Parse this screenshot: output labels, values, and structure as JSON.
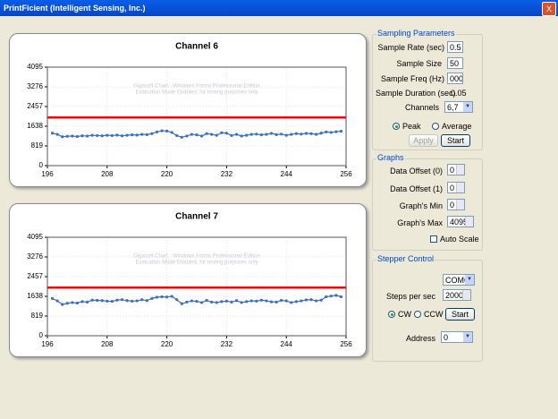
{
  "window": {
    "title": "PrintFicient (Intelligent Sensing, Inc.)",
    "close": "X"
  },
  "charts": [
    {
      "type": "line",
      "title": "Channel 6",
      "watermark": [
        "Gigasoft Chart - Windows Forms Professional Edition",
        "Evaluation Mode Enabled, for testing purposes only"
      ],
      "x": [
        197,
        198,
        199,
        200,
        201,
        202,
        203,
        204,
        205,
        206,
        207,
        208,
        209,
        210,
        211,
        212,
        213,
        214,
        215,
        216,
        217,
        218,
        219,
        220,
        221,
        222,
        223,
        224,
        225,
        226,
        227,
        228,
        229,
        230,
        231,
        232,
        233,
        234,
        235,
        236,
        237,
        238,
        239,
        240,
        241,
        242,
        243,
        244,
        245,
        246,
        247,
        248,
        249,
        250,
        251,
        252,
        253,
        254,
        255
      ],
      "series": [
        {
          "color": "#3a6fc4",
          "values": [
            1350,
            1300,
            1200,
            1220,
            1230,
            1210,
            1240,
            1230,
            1260,
            1250,
            1240,
            1260,
            1250,
            1270,
            1240,
            1260,
            1280,
            1270,
            1300,
            1290,
            1330,
            1400,
            1450,
            1440,
            1380,
            1250,
            1180,
            1230,
            1300,
            1280,
            1230,
            1330,
            1300,
            1260,
            1370,
            1350,
            1250,
            1300,
            1230,
            1260,
            1300,
            1310,
            1280,
            1300,
            1340,
            1290,
            1310,
            1260,
            1300,
            1330,
            1310,
            1340,
            1330,
            1300,
            1350,
            1400,
            1380,
            1410,
            1430
          ]
        }
      ],
      "threshold": {
        "value": 2000,
        "color": "#ff0000"
      },
      "xlim": [
        196,
        256
      ],
      "xticks": [
        196,
        208,
        220,
        232,
        244,
        256
      ],
      "ylim": [
        0,
        4095
      ],
      "yticks": [
        0,
        819,
        1638,
        2457,
        3276,
        4095
      ],
      "grid": true
    },
    {
      "type": "line",
      "title": "Channel 7",
      "watermark": [
        "Gigasoft Chart - Windows Forms Professional Edition",
        "Evaluation Mode Enabled, for testing purposes only"
      ],
      "x": [
        197,
        198,
        199,
        200,
        201,
        202,
        203,
        204,
        205,
        206,
        207,
        208,
        209,
        210,
        211,
        212,
        213,
        214,
        215,
        216,
        217,
        218,
        219,
        220,
        221,
        222,
        223,
        224,
        225,
        226,
        227,
        228,
        229,
        230,
        231,
        232,
        233,
        234,
        235,
        236,
        237,
        238,
        239,
        240,
        241,
        242,
        243,
        244,
        245,
        246,
        247,
        248,
        249,
        250,
        251,
        252,
        253,
        254,
        255
      ],
      "series": [
        {
          "color": "#3a6fc4",
          "values": [
            1550,
            1450,
            1300,
            1350,
            1380,
            1360,
            1420,
            1400,
            1480,
            1470,
            1460,
            1440,
            1430,
            1480,
            1500,
            1460,
            1440,
            1450,
            1500,
            1460,
            1550,
            1600,
            1620,
            1610,
            1640,
            1500,
            1330,
            1400,
            1450,
            1430,
            1380,
            1470,
            1400,
            1380,
            1420,
            1440,
            1400,
            1460,
            1380,
            1420,
            1450,
            1440,
            1480,
            1450,
            1410,
            1400,
            1470,
            1450,
            1380,
            1420,
            1450,
            1490,
            1500,
            1450,
            1480,
            1620,
            1650,
            1680,
            1620
          ]
        }
      ],
      "threshold": {
        "value": 2000,
        "color": "#ff0000"
      },
      "xlim": [
        196,
        256
      ],
      "xticks": [
        196,
        208,
        220,
        232,
        244,
        256
      ],
      "ylim": [
        0,
        4095
      ],
      "yticks": [
        0,
        819,
        1638,
        2457,
        3276,
        4095
      ],
      "grid": true
    }
  ],
  "sampling": {
    "title": "Sampling Parameters",
    "rate": {
      "label": "Sample Rate (sec)",
      "value": "0.5"
    },
    "size": {
      "label": "Sample Size",
      "value": "50"
    },
    "freq": {
      "label": "Sample Freq (Hz)",
      "value": "000"
    },
    "duration": {
      "label": "Sample Duration (sec)",
      "value": "0.05"
    },
    "channels": {
      "label": "Channels",
      "value": "6,7"
    },
    "modes": [
      "Peak",
      "Average"
    ],
    "apply": "Apply",
    "start": "Start"
  },
  "graphs": {
    "title": "Graphs",
    "offset0": {
      "label": "Data Offset (0)",
      "value": "0"
    },
    "offset1": {
      "label": "Data Offset (1)",
      "value": "0"
    },
    "min": {
      "label": "Graph's Min",
      "value": "0"
    },
    "max": {
      "label": "Graph's Max",
      "value": "4095"
    },
    "auto": "Auto Scale"
  },
  "stepper": {
    "title": "Stepper Control",
    "port": "COM6",
    "steps": {
      "label": "Steps per sec",
      "value": "20000"
    },
    "directions": [
      "CW",
      "CCW"
    ],
    "start": "Start",
    "address": {
      "label": "Address",
      "value": "0"
    }
  }
}
